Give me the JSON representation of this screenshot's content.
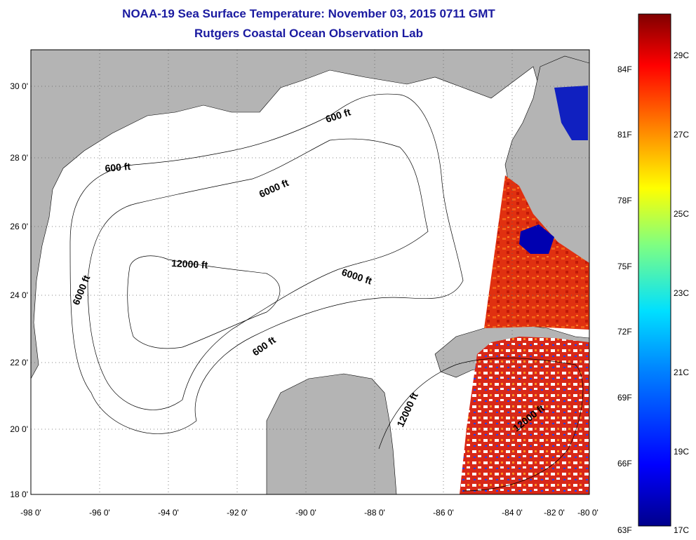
{
  "title": "NOAA-19 Sea Surface Temperature:  November 03, 2015 0711 GMT",
  "subtitle": "Rutgers Coastal Ocean Observation Lab",
  "x_ticks": [
    "-98 0'",
    "-96 0'",
    "-94 0'",
    "-92 0'",
    "-90 0'",
    "-88 0'",
    "-86 0'",
    "-84 0'",
    "-82 0'",
    "-80 0'"
  ],
  "y_ticks": [
    "30 0'",
    "28 0'",
    "26 0'",
    "24 0'",
    "22 0'",
    "20 0'",
    "18 0'"
  ],
  "contour_labels": [
    {
      "text": "600 ft"
    },
    {
      "text": "600 ft"
    },
    {
      "text": "6000 ft"
    },
    {
      "text": "12000 ft"
    },
    {
      "text": "6000 ft"
    },
    {
      "text": "6000 ft"
    },
    {
      "text": "600 ft"
    },
    {
      "text": "12000 ft"
    },
    {
      "text": "12000 ft"
    }
  ],
  "colorbar": {
    "fahrenheit": [
      "84F",
      "81F",
      "78F",
      "75F",
      "72F",
      "69F",
      "66F",
      "63F"
    ],
    "celsius": [
      "29C",
      "27C",
      "25C",
      "23C",
      "21C",
      "19C",
      "17C"
    ]
  },
  "colors": {
    "land": "#b4b4b4",
    "title": "#1a1aa0"
  }
}
